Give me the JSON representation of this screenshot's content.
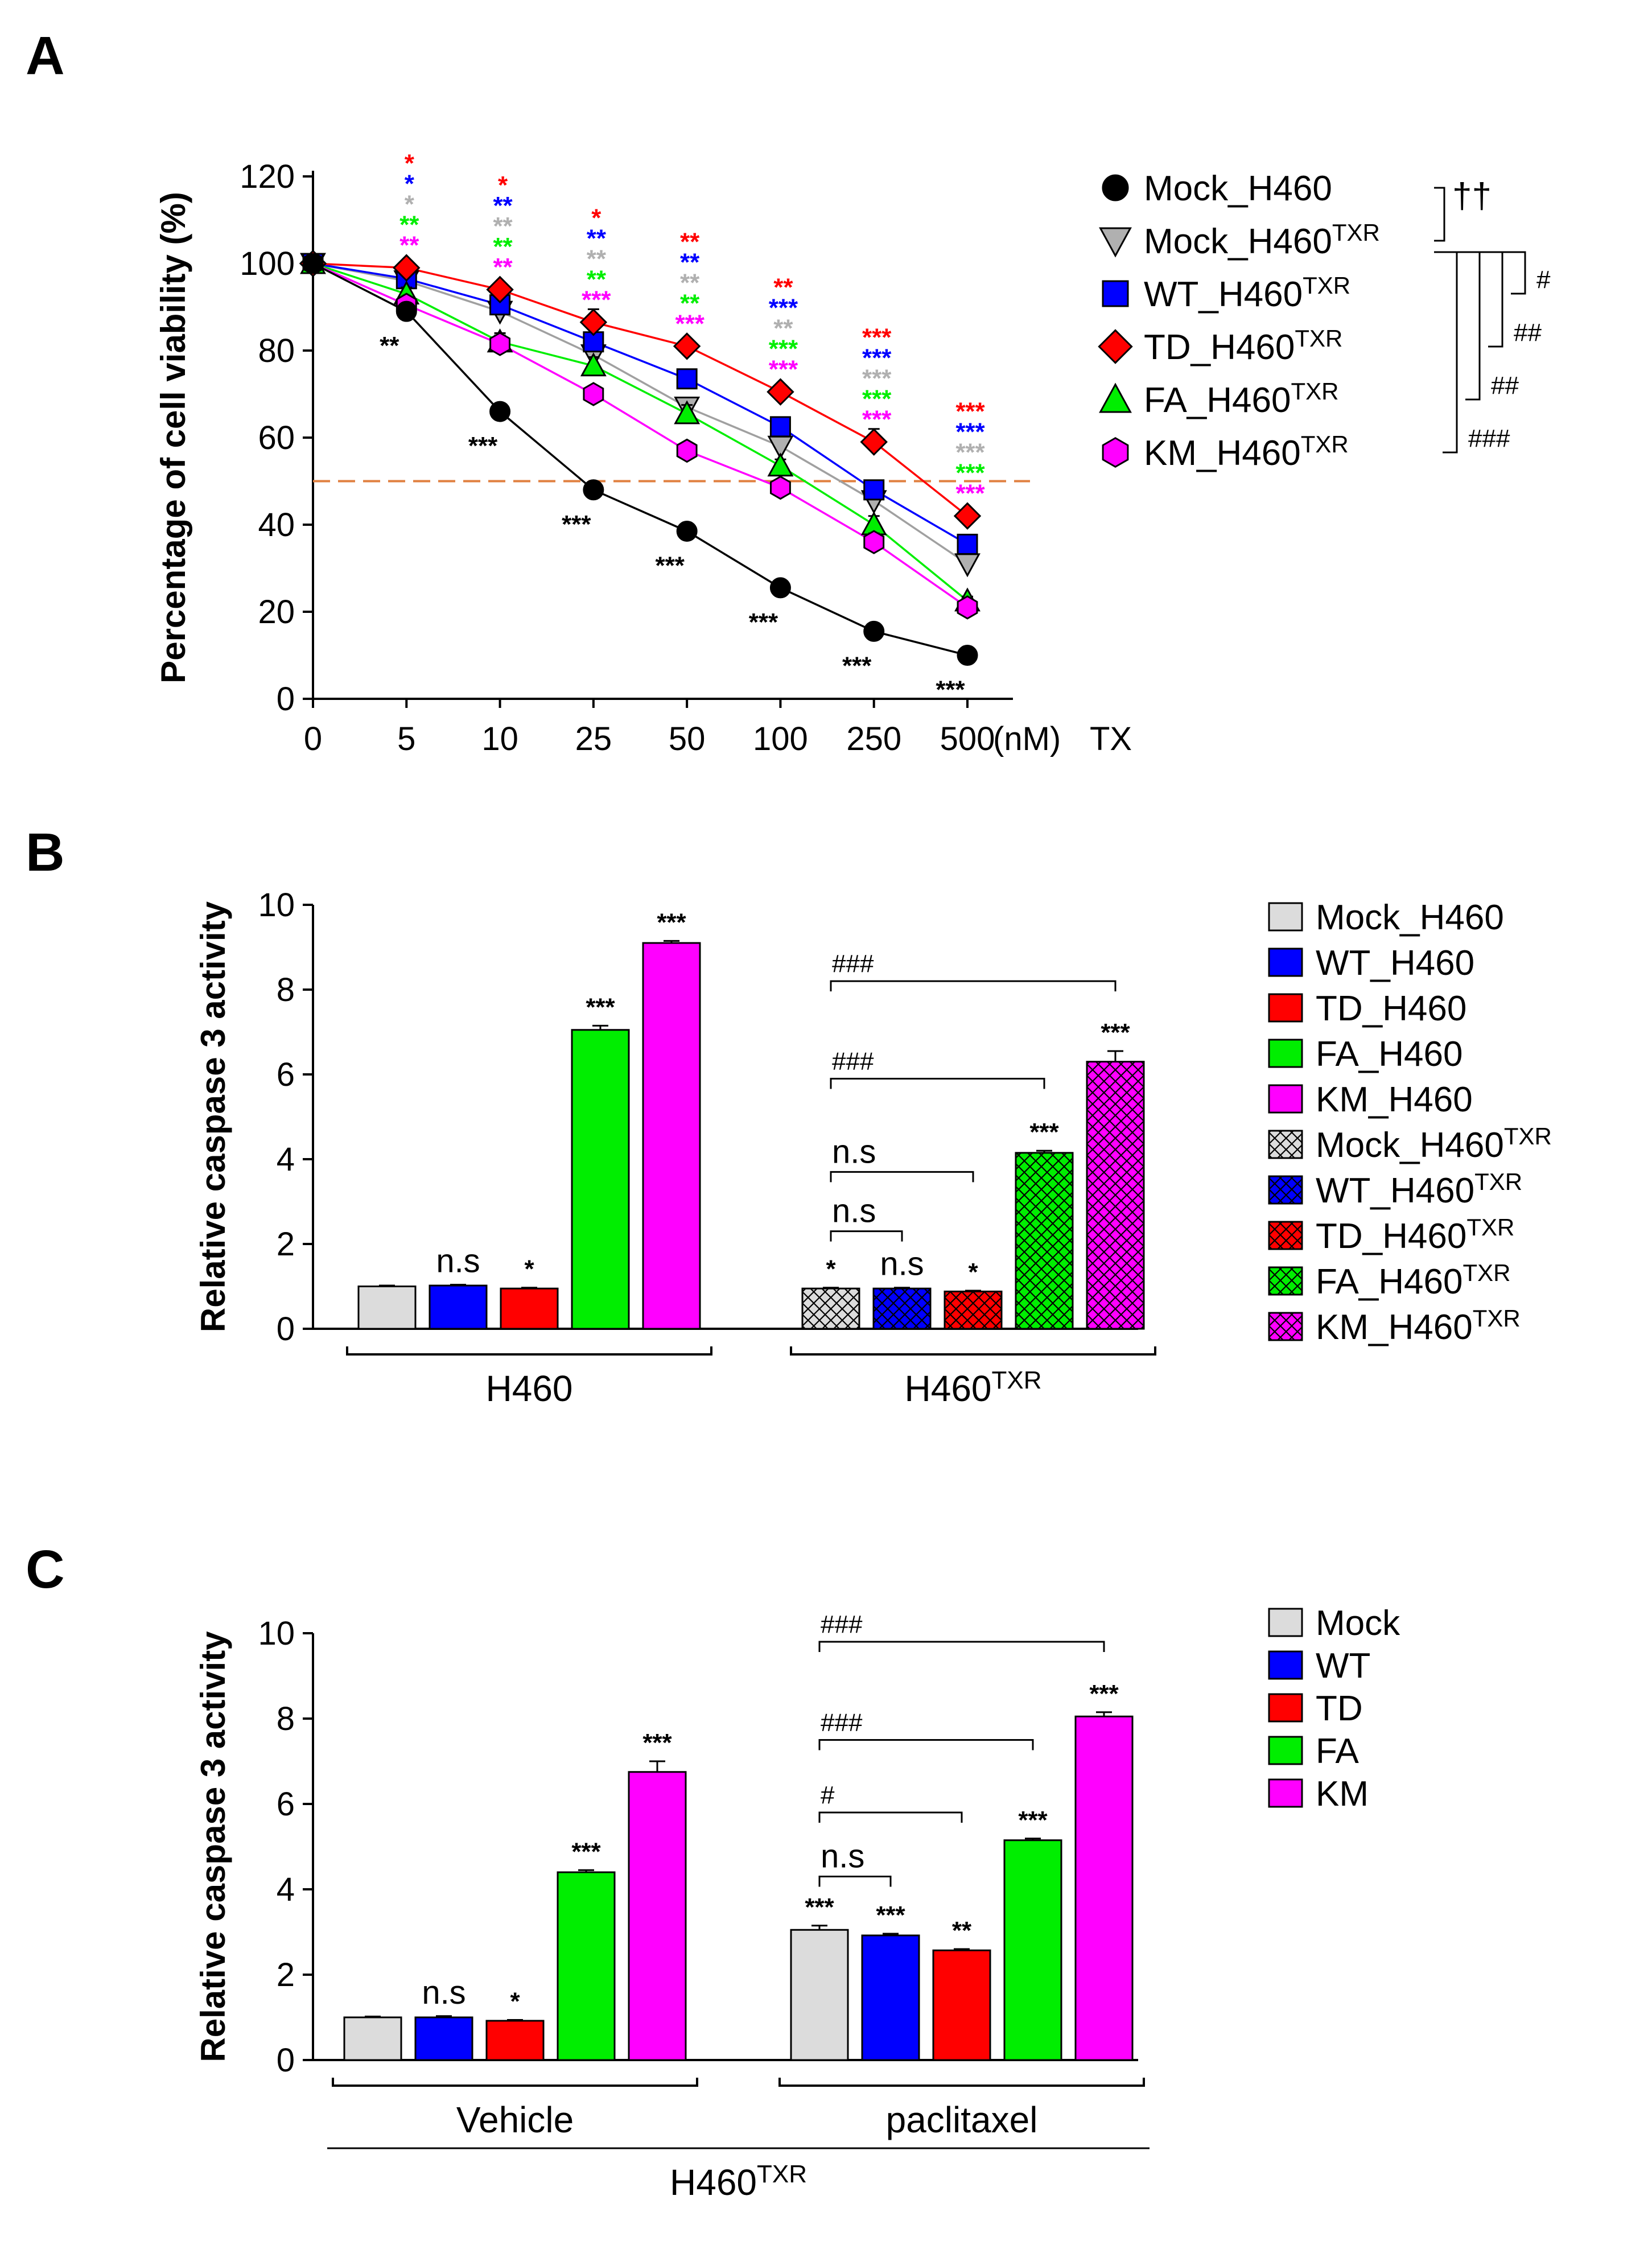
{
  "colors": {
    "Mock": "#dcdcdc",
    "Mock_line": "#000000",
    "WT": "#0000ff",
    "TD": "#ff0000",
    "FA": "#00ee00",
    "KM": "#ff00ff",
    "Mock_TXR": "#b0b0b0",
    "cutoff": "#e08040"
  },
  "chart_data": [
    {
      "panel": "A",
      "type": "line",
      "xlabel": "TX",
      "ylabel": "Percentage of cell viability (%)",
      "x_unit": "(nM)",
      "categories": [
        "0",
        "5",
        "10",
        "25",
        "50",
        "100",
        "250",
        "500"
      ],
      "ylim": [
        0,
        120
      ],
      "yticks": [
        "0",
        "20",
        "40",
        "60",
        "80",
        "100",
        "120"
      ],
      "reference_line": 50,
      "series": [
        {
          "name": "Mock_H460",
          "base": "Mock_H460",
          "sup": "",
          "color": "#000000",
          "marker": "circle",
          "values": [
            100,
            89,
            66,
            48,
            38.5,
            25.5,
            15.5,
            10
          ],
          "errors": [
            0,
            1.5,
            1.5,
            1,
            1,
            1.5,
            1,
            1
          ]
        },
        {
          "name": "Mock_H460TXR",
          "base": "Mock_H460",
          "sup": "TXR",
          "color": "#b0b0b0",
          "marker": "triangle-down",
          "values": [
            100,
            96,
            89,
            79,
            67,
            58,
            45.5,
            31
          ],
          "errors": [
            0,
            1.5,
            2,
            2,
            2,
            2,
            2,
            2
          ]
        },
        {
          "name": "WT_H460TXR",
          "base": "WT_H460",
          "sup": "TXR",
          "color": "#0000ff",
          "marker": "square",
          "values": [
            100,
            96.5,
            90.5,
            82,
            73.5,
            62.5,
            48,
            35.5
          ],
          "errors": [
            0,
            1.5,
            2,
            2,
            1.5,
            1.5,
            2,
            1.5
          ]
        },
        {
          "name": "TD_H460TXR",
          "base": "TD_H460",
          "sup": "TXR",
          "color": "#ff0000",
          "marker": "diamond",
          "values": [
            100,
            99,
            94,
            86.5,
            81,
            70.5,
            59,
            42
          ],
          "errors": [
            0,
            1.5,
            1,
            3,
            1.5,
            1.5,
            3,
            1
          ]
        },
        {
          "name": "FA_H460TXR",
          "base": "FA_H460",
          "sup": "TXR",
          "color": "#00ee00",
          "marker": "triangle-up",
          "values": [
            100,
            93,
            82,
            76.5,
            65.5,
            53.5,
            40,
            22.5
          ],
          "errors": [
            0,
            1.5,
            2,
            2,
            2,
            1.5,
            2,
            1
          ]
        },
        {
          "name": "KM_H460TXR",
          "base": "KM_H460",
          "sup": "TXR",
          "color": "#ff00ff",
          "marker": "hexagon",
          "values": [
            100,
            90.5,
            81.5,
            70,
            57,
            48.5,
            36,
            21
          ],
          "errors": [
            0,
            1.5,
            2,
            1.5,
            1.5,
            1.5,
            2,
            1
          ]
        }
      ],
      "mock_h460_labels": {
        "5": "**",
        "10": "***",
        "25": "***",
        "50": "***",
        "100": "***",
        "250": "***",
        "500": "***"
      },
      "stacked_stars": {
        "5": [
          [
            "*",
            "#ff0000"
          ],
          [
            "*",
            "#0000ff"
          ],
          [
            "*",
            "#b0b0b0"
          ],
          [
            "**",
            "#00ee00"
          ],
          [
            "**",
            "#ff00ff"
          ]
        ],
        "10": [
          [
            "*",
            "#ff0000"
          ],
          [
            "**",
            "#0000ff"
          ],
          [
            "**",
            "#b0b0b0"
          ],
          [
            "**",
            "#00ee00"
          ],
          [
            "**",
            "#ff00ff"
          ]
        ],
        "25": [
          [
            "*",
            "#ff0000"
          ],
          [
            "**",
            "#0000ff"
          ],
          [
            "**",
            "#b0b0b0"
          ],
          [
            "**",
            "#00ee00"
          ],
          [
            "***",
            "#ff00ff"
          ]
        ],
        "50": [
          [
            "**",
            "#ff0000"
          ],
          [
            "**",
            "#0000ff"
          ],
          [
            "**",
            "#b0b0b0"
          ],
          [
            "**",
            "#00ee00"
          ],
          [
            "***",
            "#ff00ff"
          ]
        ],
        "100": [
          [
            "**",
            "#ff0000"
          ],
          [
            "***",
            "#0000ff"
          ],
          [
            "**",
            "#b0b0b0"
          ],
          [
            "***",
            "#00ee00"
          ],
          [
            "***",
            "#ff00ff"
          ]
        ],
        "250": [
          [
            "***",
            "#ff0000"
          ],
          [
            "***",
            "#0000ff"
          ],
          [
            "***",
            "#b0b0b0"
          ],
          [
            "***",
            "#00ee00"
          ],
          [
            "***",
            "#ff00ff"
          ]
        ],
        "500": [
          [
            "***",
            "#ff0000"
          ],
          [
            "***",
            "#0000ff"
          ],
          [
            "***",
            "#b0b0b0"
          ],
          [
            "***",
            "#00ee00"
          ],
          [
            "***",
            "#ff00ff"
          ]
        ]
      },
      "legend_brackets": [
        {
          "from": "Mock_H460",
          "to": "Mock_H460TXR",
          "label": "††"
        },
        {
          "from": "Mock_H460TXR",
          "to": "WT_H460TXR",
          "label": "#"
        },
        {
          "from": "Mock_H460TXR",
          "to": "TD_H460TXR",
          "label": "##"
        },
        {
          "from": "Mock_H460TXR",
          "to": "FA_H460TXR",
          "label": "##"
        },
        {
          "from": "Mock_H460TXR",
          "to": "KM_H460TXR",
          "label": "###"
        }
      ]
    },
    {
      "panel": "B",
      "type": "bar",
      "ylabel": "Relative caspase 3 activity",
      "ylim": [
        0,
        10
      ],
      "yticks": [
        "0",
        "2",
        "4",
        "6",
        "8",
        "10"
      ],
      "groups": [
        {
          "name": "H460",
          "sup": "",
          "bars": [
            {
              "label": "Mock_H460",
              "value": 1.0,
              "error": 0.02,
              "sig": "",
              "color": "#dcdcdc",
              "hatch": false
            },
            {
              "label": "WT_H460",
              "value": 1.02,
              "error": 0.02,
              "sig": "n.s",
              "color": "#0000ff",
              "hatch": false
            },
            {
              "label": "TD_H460",
              "value": 0.95,
              "error": 0.02,
              "sig": "*",
              "color": "#ff0000",
              "hatch": false
            },
            {
              "label": "FA_H460",
              "value": 7.05,
              "error": 0.1,
              "sig": "***",
              "color": "#00ee00",
              "hatch": false
            },
            {
              "label": "KM_H460",
              "value": 9.1,
              "error": 0.05,
              "sig": "***",
              "color": "#ff00ff",
              "hatch": false
            }
          ]
        },
        {
          "name": "H460",
          "sup": "TXR",
          "bars": [
            {
              "label": "Mock_H460TXR",
              "value": 0.95,
              "error": 0.02,
              "sig": "*",
              "color": "#dcdcdc",
              "hatch": true
            },
            {
              "label": "WT_H460TXR",
              "value": 0.95,
              "error": 0.02,
              "sig": "n.s",
              "color": "#0000ff",
              "hatch": true
            },
            {
              "label": "TD_H460TXR",
              "value": 0.88,
              "error": 0.02,
              "sig": "*",
              "color": "#ff0000",
              "hatch": true
            },
            {
              "label": "FA_H460TXR",
              "value": 4.15,
              "error": 0.05,
              "sig": "***",
              "color": "#00ee00",
              "hatch": true
            },
            {
              "label": "KM_H460TXR",
              "value": 6.3,
              "error": 0.25,
              "sig": "***",
              "color": "#ff00ff",
              "hatch": true
            }
          ]
        }
      ],
      "comparisons": [
        {
          "group": 1,
          "from": 0,
          "to": 1,
          "y": 2.3,
          "label": "n.s"
        },
        {
          "group": 1,
          "from": 0,
          "to": 2,
          "y": 3.7,
          "label": "n.s"
        },
        {
          "group": 1,
          "from": 0,
          "to": 3,
          "y": 5.9,
          "label": "###"
        },
        {
          "group": 1,
          "from": 0,
          "to": 4,
          "y": 8.2,
          "label": "###"
        }
      ],
      "legend": [
        {
          "base": "Mock_H460",
          "sup": "",
          "color": "#dcdcdc",
          "hatch": false
        },
        {
          "base": "WT_H460",
          "sup": "",
          "color": "#0000ff",
          "hatch": false
        },
        {
          "base": "TD_H460",
          "sup": "",
          "color": "#ff0000",
          "hatch": false
        },
        {
          "base": "FA_H460",
          "sup": "",
          "color": "#00ee00",
          "hatch": false
        },
        {
          "base": "KM_H460",
          "sup": "",
          "color": "#ff00ff",
          "hatch": false
        },
        {
          "base": "Mock_H460",
          "sup": "TXR",
          "color": "#dcdcdc",
          "hatch": true
        },
        {
          "base": "WT_H460",
          "sup": "TXR",
          "color": "#0000ff",
          "hatch": true
        },
        {
          "base": "TD_H460",
          "sup": "TXR",
          "color": "#ff0000",
          "hatch": true
        },
        {
          "base": "FA_H460",
          "sup": "TXR",
          "color": "#00ee00",
          "hatch": true
        },
        {
          "base": "KM_H460",
          "sup": "TXR",
          "color": "#ff00ff",
          "hatch": true
        }
      ]
    },
    {
      "panel": "C",
      "type": "bar",
      "ylabel": "Relative caspase 3 activity",
      "ylim": [
        0,
        10
      ],
      "yticks": [
        "0",
        "2",
        "4",
        "6",
        "8",
        "10"
      ],
      "overall_label": {
        "base": "H460",
        "sup": "TXR"
      },
      "groups": [
        {
          "name": "Vehicle",
          "sup": "",
          "bars": [
            {
              "label": "Mock",
              "value": 1.0,
              "error": 0.02,
              "sig": "",
              "color": "#dcdcdc",
              "hatch": false
            },
            {
              "label": "WT",
              "value": 1.0,
              "error": 0.03,
              "sig": "n.s",
              "color": "#0000ff",
              "hatch": false
            },
            {
              "label": "TD",
              "value": 0.92,
              "error": 0.02,
              "sig": "*",
              "color": "#ff0000",
              "hatch": false
            },
            {
              "label": "FA",
              "value": 4.4,
              "error": 0.05,
              "sig": "***",
              "color": "#00ee00",
              "hatch": false
            },
            {
              "label": "KM",
              "value": 6.75,
              "error": 0.25,
              "sig": "***",
              "color": "#ff00ff",
              "hatch": false
            }
          ]
        },
        {
          "name": "paclitaxel",
          "sup": "",
          "bars": [
            {
              "label": "Mock",
              "value": 3.05,
              "error": 0.1,
              "sig": "***",
              "color": "#dcdcdc",
              "hatch": false
            },
            {
              "label": "WT",
              "value": 2.92,
              "error": 0.04,
              "sig": "***",
              "color": "#0000ff",
              "hatch": false
            },
            {
              "label": "TD",
              "value": 2.57,
              "error": 0.03,
              "sig": "**",
              "color": "#ff0000",
              "hatch": false
            },
            {
              "label": "FA",
              "value": 5.15,
              "error": 0.04,
              "sig": "***",
              "color": "#00ee00",
              "hatch": false
            },
            {
              "label": "KM",
              "value": 8.05,
              "error": 0.1,
              "sig": "***",
              "color": "#ff00ff",
              "hatch": false
            }
          ]
        }
      ],
      "comparisons": [
        {
          "group": 1,
          "from": 0,
          "to": 1,
          "y": 4.3,
          "label": "n.s"
        },
        {
          "group": 1,
          "from": 0,
          "to": 2,
          "y": 5.8,
          "label": "#"
        },
        {
          "group": 1,
          "from": 0,
          "to": 3,
          "y": 7.5,
          "label": "###"
        },
        {
          "group": 1,
          "from": 0,
          "to": 4,
          "y": 9.8,
          "label": "###"
        }
      ],
      "legend": [
        {
          "base": "Mock",
          "sup": "",
          "color": "#dcdcdc",
          "hatch": false
        },
        {
          "base": "WT",
          "sup": "",
          "color": "#0000ff",
          "hatch": false
        },
        {
          "base": "TD",
          "sup": "",
          "color": "#ff0000",
          "hatch": false
        },
        {
          "base": "FA",
          "sup": "",
          "color": "#00ee00",
          "hatch": false
        },
        {
          "base": "KM",
          "sup": "",
          "color": "#ff00ff",
          "hatch": false
        }
      ]
    }
  ],
  "panel_labels": [
    "A",
    "B",
    "C"
  ]
}
